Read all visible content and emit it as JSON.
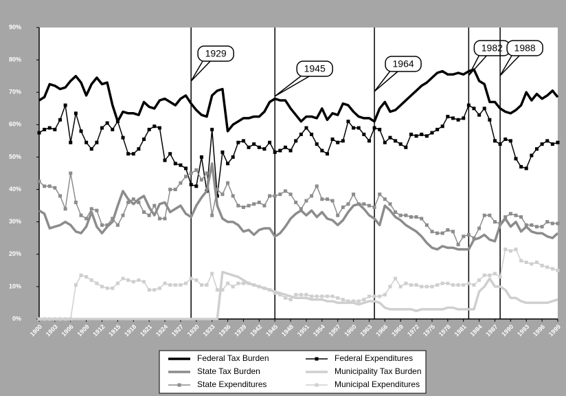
{
  "chart_data": {
    "type": "line",
    "x": [
      1900,
      1901,
      1902,
      1903,
      1904,
      1905,
      1906,
      1907,
      1908,
      1909,
      1910,
      1911,
      1912,
      1913,
      1914,
      1915,
      1916,
      1917,
      1918,
      1919,
      1920,
      1921,
      1922,
      1923,
      1924,
      1925,
      1926,
      1927,
      1928,
      1929,
      1930,
      1931,
      1932,
      1933,
      1934,
      1935,
      1936,
      1937,
      1938,
      1939,
      1940,
      1941,
      1942,
      1943,
      1944,
      1945,
      1946,
      1947,
      1948,
      1949,
      1950,
      1951,
      1952,
      1953,
      1954,
      1955,
      1956,
      1957,
      1958,
      1959,
      1960,
      1961,
      1962,
      1963,
      1964,
      1965,
      1966,
      1967,
      1968,
      1969,
      1970,
      1971,
      1972,
      1973,
      1974,
      1975,
      1976,
      1977,
      1978,
      1979,
      1980,
      1981,
      1982,
      1983,
      1984,
      1985,
      1986,
      1987,
      1988,
      1989,
      1990,
      1991,
      1992,
      1993,
      1994,
      1995,
      1996,
      1997,
      1998,
      1999
    ],
    "xlim": [
      1900,
      1999
    ],
    "xticks": [
      1900,
      1903,
      1906,
      1909,
      1912,
      1915,
      1918,
      1921,
      1924,
      1927,
      1930,
      1933,
      1936,
      1939,
      1942,
      1945,
      1948,
      1951,
      1954,
      1957,
      1960,
      1963,
      1966,
      1969,
      1972,
      1975,
      1978,
      1981,
      1984,
      1987,
      1990,
      1993,
      1996,
      1999
    ],
    "ylim": [
      0,
      90
    ],
    "yticks": [
      {
        "value": 0,
        "label": "0%"
      },
      {
        "value": 10,
        "label": "10%"
      },
      {
        "value": 20,
        "label": "20%"
      },
      {
        "value": 30,
        "label": "30%"
      },
      {
        "value": 40,
        "label": "40%"
      },
      {
        "value": 50,
        "label": "50%"
      },
      {
        "value": 60,
        "label": "60%"
      },
      {
        "value": 70,
        "label": "70%"
      },
      {
        "value": 80,
        "label": "80%"
      },
      {
        "value": 90,
        "label": "90%"
      }
    ],
    "annotations": [
      {
        "text": "1929",
        "x": 1929
      },
      {
        "text": "1945",
        "x": 1945
      },
      {
        "text": "1964",
        "x": 1964
      },
      {
        "text": "1982",
        "x": 1982
      },
      {
        "text": "1988",
        "x": 1988
      }
    ],
    "series": [
      {
        "name": "Federal Tax Burden",
        "color": "#000000",
        "line_width": 3.5,
        "marker": "none",
        "values": [
          67.5,
          68.5,
          72.5,
          72,
          71,
          71.5,
          73.5,
          75,
          73,
          69,
          72.5,
          74.5,
          72.5,
          73,
          66,
          61,
          64,
          63.5,
          63.5,
          63,
          67,
          65.5,
          65,
          67.5,
          68,
          67,
          66,
          68,
          69,
          66.5,
          64.5,
          63,
          62.5,
          69,
          70.5,
          71,
          58,
          60,
          61,
          62,
          62,
          62.5,
          62.5,
          64,
          67,
          68,
          67.5,
          67.5,
          65,
          63,
          61,
          62.5,
          62.5,
          62,
          65,
          61.5,
          63.5,
          63,
          66.5,
          66,
          64,
          62.5,
          62,
          62,
          61,
          65,
          67,
          64,
          64.5,
          66,
          67.5,
          69,
          70.5,
          72,
          73,
          74.5,
          76,
          76.5,
          75.5,
          75.5,
          76,
          75.5,
          76.5,
          77,
          73.5,
          72.5,
          67,
          67,
          65,
          64,
          63.5,
          64.5,
          66,
          70,
          67.5,
          69.5,
          68,
          69,
          70.5,
          68.5
        ]
      },
      {
        "name": "Federal Expenditures",
        "color": "#000000",
        "line_width": 1.5,
        "marker": "square",
        "values": [
          57.5,
          58.5,
          59,
          58.5,
          61.5,
          66,
          54.5,
          63.5,
          58,
          54.5,
          52.5,
          54.5,
          59,
          60.5,
          58.5,
          61,
          56,
          51,
          51,
          52.5,
          55.5,
          58.5,
          59.5,
          59,
          49,
          51,
          48,
          47.5,
          46.5,
          41.5,
          41,
          50,
          39.5,
          58.5,
          38,
          51.5,
          48,
          50,
          54.5,
          55,
          53,
          54,
          53,
          52.5,
          54.5,
          51.5,
          52,
          53,
          52,
          55,
          57,
          59,
          57,
          54,
          52,
          51,
          55.5,
          54.5,
          55,
          61,
          59,
          59,
          57,
          55,
          59,
          58.5,
          54.5,
          56,
          55,
          54,
          53,
          57,
          56.5,
          57,
          56.5,
          57.5,
          58.5,
          59.5,
          62.5,
          62,
          61.5,
          62,
          66,
          65,
          63,
          65,
          61.5,
          55,
          54,
          55.5,
          55,
          49.5,
          47,
          46.5,
          50.5,
          52.5,
          54,
          55,
          54,
          54.5
        ]
      },
      {
        "name": "State Tax Burden",
        "color": "#8c8c8c",
        "line_width": 3.5,
        "marker": "none",
        "values": [
          33.5,
          32.5,
          28,
          28.5,
          29,
          30,
          29,
          27,
          26.5,
          28.5,
          33,
          28.5,
          26.5,
          28.5,
          30,
          35,
          39.5,
          37,
          35.5,
          37,
          38,
          34.5,
          32,
          35.5,
          36,
          33,
          34,
          35,
          32.5,
          31.5,
          35,
          37.5,
          39.5,
          48,
          35,
          31,
          30,
          30,
          29,
          27,
          27.5,
          26,
          27.5,
          28,
          28,
          25.5,
          26.5,
          28.5,
          31,
          32.5,
          33.5,
          32,
          33.5,
          31.5,
          33,
          31,
          30.5,
          29,
          30.5,
          33,
          35,
          35.5,
          34,
          32,
          31,
          29,
          35,
          33.5,
          31.5,
          30.5,
          29,
          28,
          27,
          25.5,
          23.5,
          22,
          21.5,
          22.5,
          22,
          22,
          21.5,
          21.5,
          21.5,
          24.5,
          25,
          26,
          24.5,
          24,
          29,
          31,
          28.5,
          30,
          27,
          28.5,
          27,
          26.5,
          26.5,
          25.5,
          25,
          26.5
        ]
      },
      {
        "name": "Municipality Tax Burden",
        "color": "#cfcfcf",
        "line_width": 3.5,
        "marker": "none",
        "values": [
          0,
          0,
          0,
          0,
          0,
          0,
          0,
          0,
          0,
          0,
          0,
          0,
          0,
          0,
          0,
          0,
          0,
          0,
          0,
          0,
          0,
          0,
          0,
          0,
          0,
          0,
          0,
          0,
          0,
          0,
          0,
          0,
          0,
          0,
          0,
          14.5,
          14,
          13.5,
          13,
          12,
          11,
          10.5,
          10,
          9.5,
          9,
          8.5,
          8,
          7.5,
          7,
          6.5,
          6.5,
          6.5,
          6,
          6,
          6,
          5.5,
          5.5,
          5,
          5,
          5,
          5,
          4.5,
          5,
          5.5,
          5.5,
          5,
          3.5,
          3,
          3,
          3,
          3,
          3,
          2.5,
          3,
          3,
          3,
          3,
          3,
          3.5,
          3.5,
          3,
          3,
          3,
          3,
          8.5,
          10,
          12.5,
          10,
          10,
          9,
          6.5,
          6.5,
          5.5,
          5,
          5,
          5,
          5,
          5,
          5.5,
          6
        ]
      },
      {
        "name": "State Expenditures",
        "color": "#8c8c8c",
        "line_width": 1.5,
        "marker": "square",
        "values": [
          42.5,
          41,
          41,
          40.5,
          38,
          34,
          45,
          36,
          32,
          31,
          34,
          33.5,
          29,
          29,
          31,
          29,
          32,
          36,
          37,
          36,
          33,
          32,
          35,
          31,
          31,
          40,
          40,
          42,
          44,
          45,
          46,
          43,
          45,
          32,
          40,
          38.5,
          42,
          38,
          35,
          34.5,
          35,
          35.5,
          36,
          35,
          38,
          38,
          38.5,
          39.5,
          38.5,
          36,
          34,
          36.5,
          38,
          41,
          37,
          37,
          36.5,
          32,
          34.5,
          35.5,
          38.5,
          35.5,
          35.5,
          35,
          34.5,
          38.5,
          37,
          35.5,
          33,
          32,
          32,
          31.5,
          31.5,
          31,
          29,
          27,
          26.5,
          26.5,
          27.5,
          27,
          23,
          25.5,
          26,
          25,
          28,
          32,
          32,
          30,
          29.5,
          31.5,
          32.5,
          32,
          31.5,
          29,
          29,
          28.5,
          28.5,
          30,
          29.5,
          29.5
        ]
      },
      {
        "name": "Municipal Expenditures",
        "color": "#cfcfcf",
        "line_width": 1.5,
        "marker": "square",
        "values": [
          0,
          0,
          0,
          0,
          0,
          0,
          0,
          10.5,
          13.5,
          13,
          12,
          11,
          10,
          9.5,
          9.5,
          11,
          12.5,
          12,
          11.5,
          12,
          11.5,
          9,
          9,
          9.5,
          11,
          10.5,
          10.5,
          10.5,
          11,
          12.5,
          12,
          10.5,
          10.5,
          14,
          9,
          9,
          11,
          10,
          11,
          11,
          11,
          10.5,
          10,
          9.5,
          9,
          8,
          7.5,
          6.5,
          6,
          7.5,
          7.5,
          7.5,
          7,
          7,
          7,
          7,
          7,
          6.5,
          6,
          5.5,
          5.5,
          5.5,
          6,
          7,
          7,
          7,
          7.5,
          10,
          12.5,
          10,
          11,
          10.5,
          10.5,
          10,
          10,
          10,
          10.5,
          11,
          11,
          10.5,
          10.5,
          10.5,
          11,
          10.5,
          12,
          13.5,
          13.5,
          14,
          13,
          21.5,
          21,
          21.5,
          18,
          17.5,
          17,
          17.5,
          16.5,
          16,
          15.5,
          15
        ]
      }
    ]
  }
}
